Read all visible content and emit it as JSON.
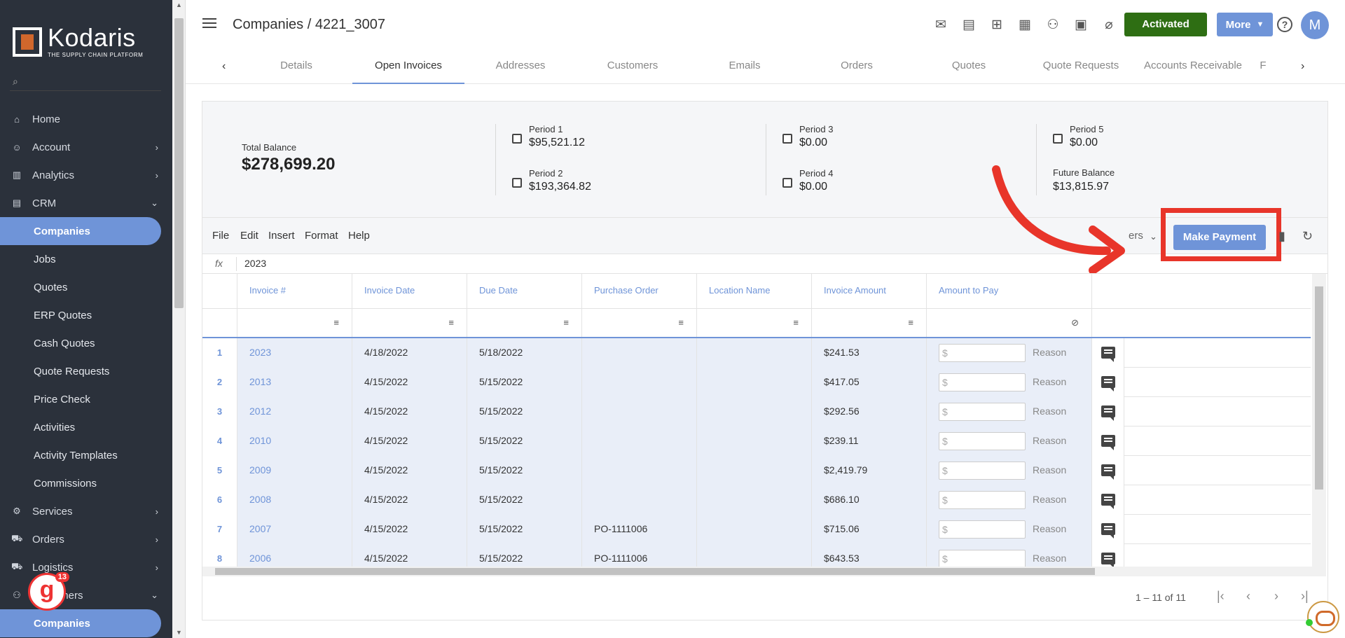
{
  "brand": {
    "name": "Kodaris",
    "tagline": "THE SUPPLY CHAIN PLATFORM"
  },
  "sidebar": {
    "search_value": "Search...",
    "items": [
      {
        "label": "Home",
        "icon": "home-icon",
        "chevron": ""
      },
      {
        "label": "Account",
        "icon": "person-icon",
        "chevron": "›"
      },
      {
        "label": "Analytics",
        "icon": "chart-icon",
        "chevron": "›"
      },
      {
        "label": "CRM",
        "icon": "contacts-icon",
        "chevron": "⌄"
      },
      {
        "label": "Companies",
        "sub": true,
        "active": true
      },
      {
        "label": "Jobs",
        "sub": true
      },
      {
        "label": "Quotes",
        "sub": true
      },
      {
        "label": "ERP Quotes",
        "sub": true
      },
      {
        "label": "Cash Quotes",
        "sub": true
      },
      {
        "label": "Quote Requests",
        "sub": true
      },
      {
        "label": "Price Check",
        "sub": true
      },
      {
        "label": "Activities",
        "sub": true
      },
      {
        "label": "Activity Templates",
        "sub": true
      },
      {
        "label": "Commissions",
        "sub": true
      },
      {
        "label": "Services",
        "icon": "gears-icon",
        "chevron": "›"
      },
      {
        "label": "Orders",
        "icon": "truck-icon",
        "chevron": "›"
      },
      {
        "label": "Logistics",
        "icon": "van-icon",
        "chevron": "›"
      },
      {
        "label": "Customers",
        "icon": "people-icon",
        "chevron": "⌄"
      },
      {
        "label": "Companies",
        "sub": true,
        "active": true
      }
    ],
    "badge_count": "13"
  },
  "header": {
    "title": "Companies / 4221_3007",
    "activated_label": "Activated",
    "more_label": "More",
    "help": "?",
    "avatar_initial": "M",
    "icons": [
      "mail-icon",
      "card-check-icon",
      "gift-card-icon",
      "building-icon",
      "add-person-icon",
      "new-document-icon",
      "attachment-icon"
    ]
  },
  "tabs": [
    "Details",
    "Open Invoices",
    "Addresses",
    "Customers",
    "Emails",
    "Orders",
    "Quotes",
    "Quote Requests",
    "Accounts Receivable",
    "F"
  ],
  "active_tab": 1,
  "summary": {
    "total_label": "Total Balance",
    "total_value": "$278,699.20",
    "periods": [
      {
        "label": "Period 1",
        "value": "$95,521.12"
      },
      {
        "label": "Period 2",
        "value": "$193,364.82"
      },
      {
        "label": "Period 3",
        "value": "$0.00"
      },
      {
        "label": "Period 4",
        "value": "$0.00"
      },
      {
        "label": "Period 5",
        "value": "$0.00"
      }
    ],
    "future_label": "Future Balance",
    "future_value": "$13,815.97"
  },
  "toolbar": {
    "menu": [
      "File",
      "Edit",
      "Insert",
      "Format",
      "Help"
    ],
    "filters_text": "ers",
    "make_payment_label": "Make Payment"
  },
  "formula": {
    "fx": "fx",
    "value": "2023"
  },
  "grid": {
    "columns": [
      "Invoice #",
      "Invoice Date",
      "Due Date",
      "Purchase Order",
      "Location Name",
      "Invoice Amount",
      "Amount to Pay"
    ],
    "pay_placeholder": "$",
    "reason_label": "Reason",
    "rows": [
      {
        "n": "1",
        "invoice": "2023",
        "date": "4/18/2022",
        "due": "5/18/2022",
        "po": "",
        "loc": "",
        "amount": "$241.53"
      },
      {
        "n": "2",
        "invoice": "2013",
        "date": "4/15/2022",
        "due": "5/15/2022",
        "po": "",
        "loc": "",
        "amount": "$417.05"
      },
      {
        "n": "3",
        "invoice": "2012",
        "date": "4/15/2022",
        "due": "5/15/2022",
        "po": "",
        "loc": "",
        "amount": "$292.56"
      },
      {
        "n": "4",
        "invoice": "2010",
        "date": "4/15/2022",
        "due": "5/15/2022",
        "po": "",
        "loc": "",
        "amount": "$239.11"
      },
      {
        "n": "5",
        "invoice": "2009",
        "date": "4/15/2022",
        "due": "5/15/2022",
        "po": "",
        "loc": "",
        "amount": "$2,419.79"
      },
      {
        "n": "6",
        "invoice": "2008",
        "date": "4/15/2022",
        "due": "5/15/2022",
        "po": "",
        "loc": "",
        "amount": "$686.10"
      },
      {
        "n": "7",
        "invoice": "2007",
        "date": "4/15/2022",
        "due": "5/15/2022",
        "po": "PO-1111006",
        "loc": "",
        "amount": "$715.06"
      },
      {
        "n": "8",
        "invoice": "2006",
        "date": "4/15/2022",
        "due": "5/15/2022",
        "po": "PO-1111006",
        "loc": "",
        "amount": "$643.53"
      }
    ]
  },
  "pager": {
    "text": "1 – 11 of 11"
  },
  "colors": {
    "accent": "#6f94d8",
    "activated": "#2e6e13",
    "sidebar": "#2b313b",
    "highlight": "#e8352a"
  }
}
